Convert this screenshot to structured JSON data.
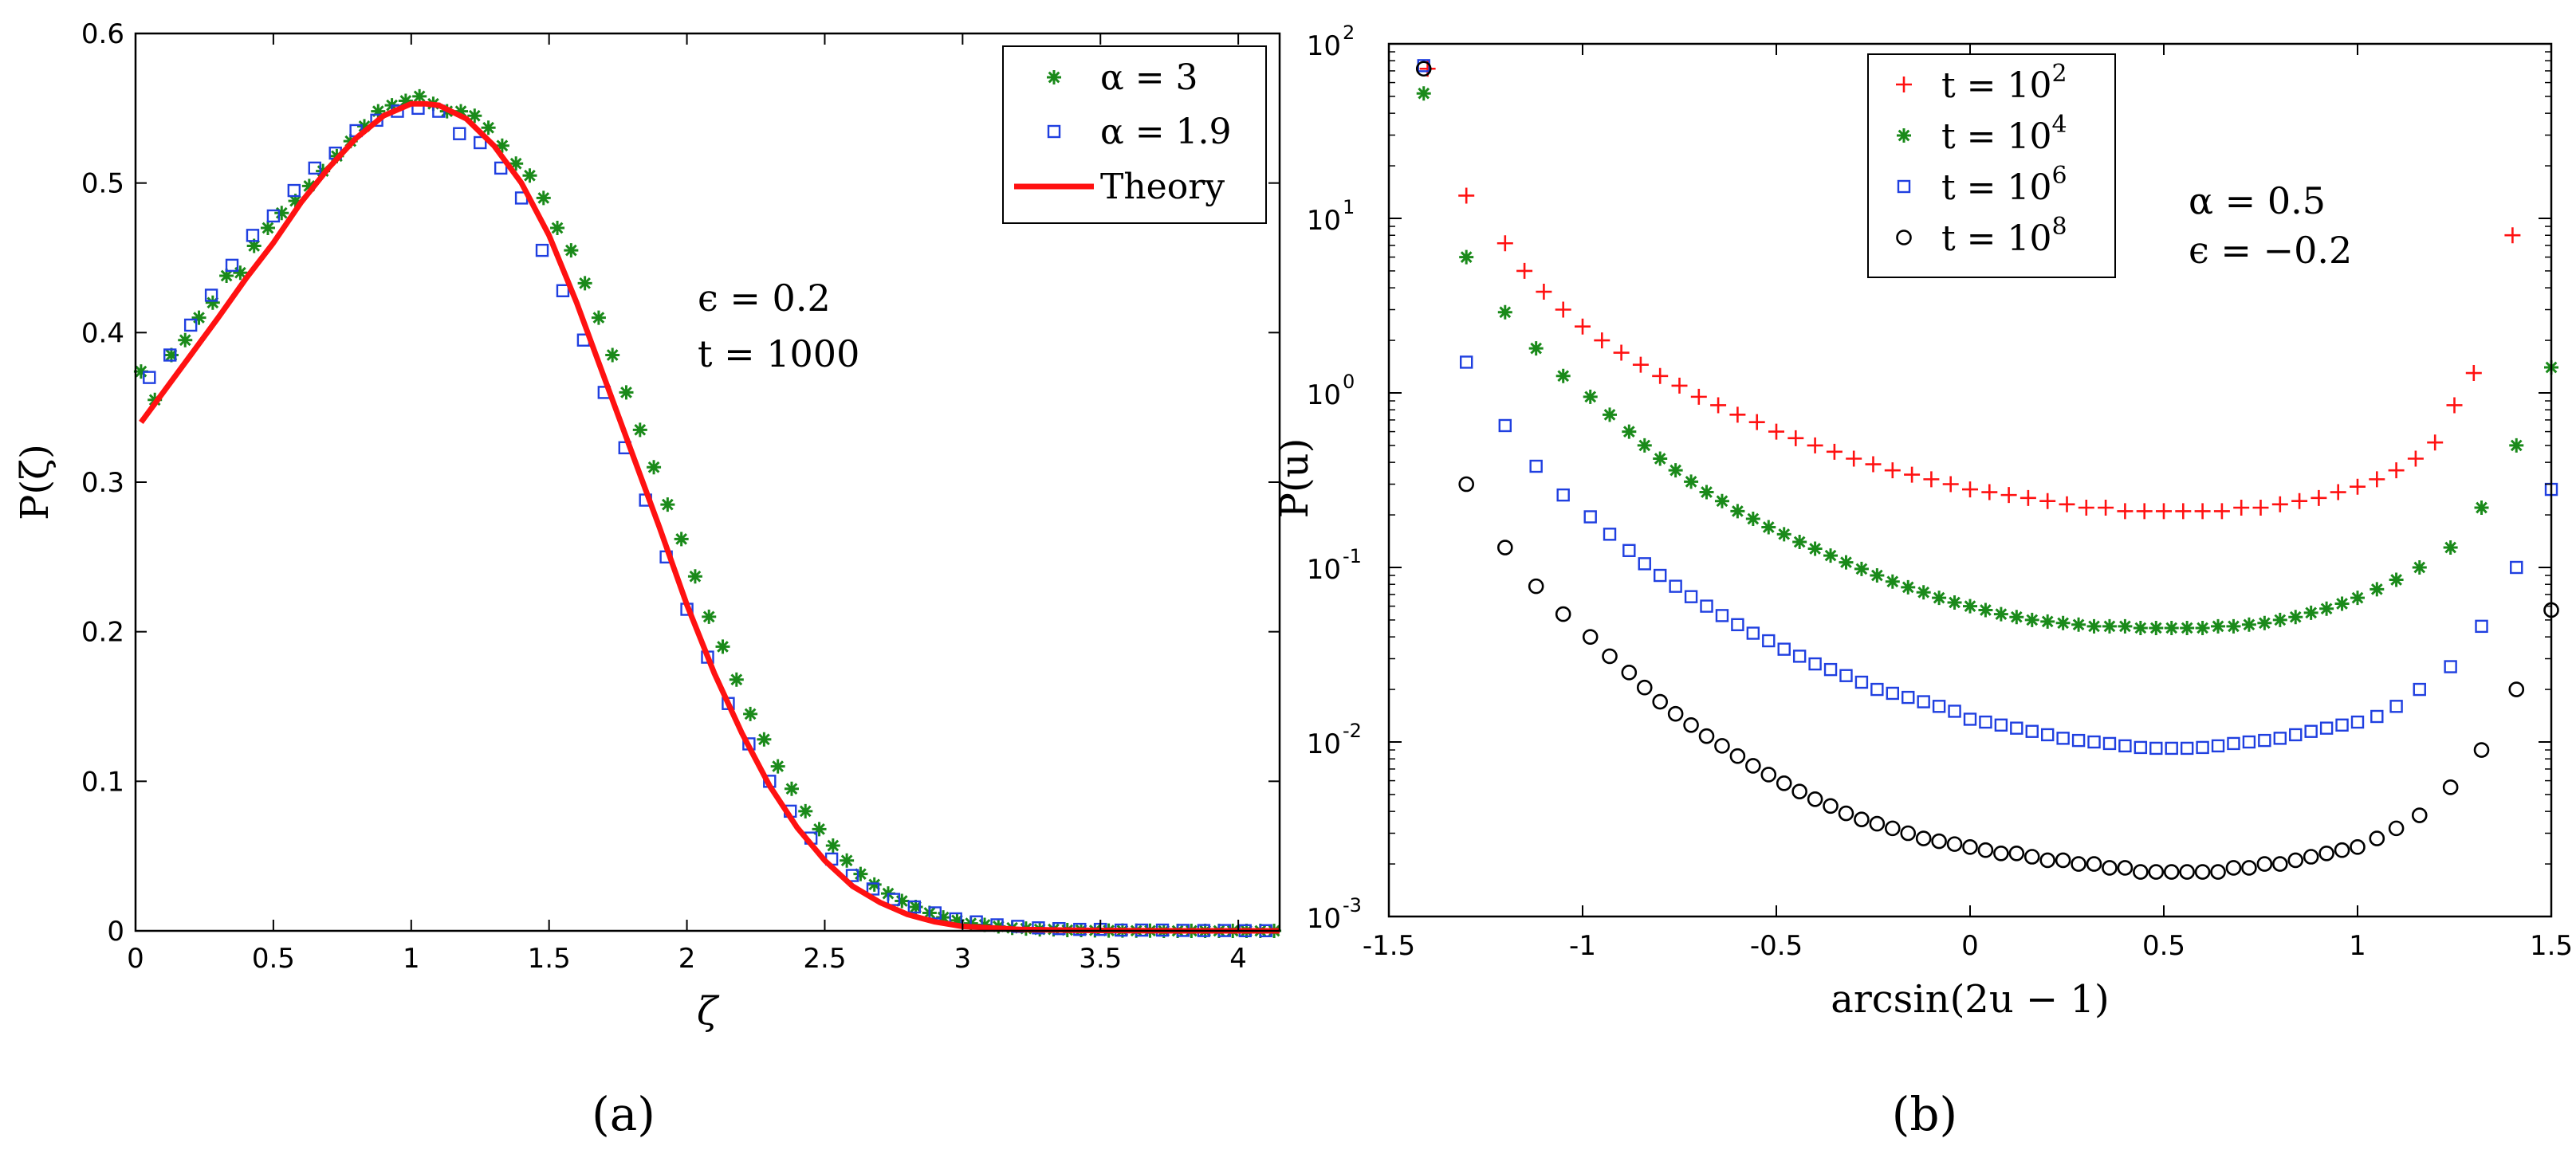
{
  "colors": {
    "green": "#1a8a1a",
    "blue": "#1f3fe0",
    "red": "#ff1111",
    "black": "#000000"
  },
  "chart_data": [
    {
      "type": "scatter",
      "panel_label": "(a)",
      "xlabel": "ζ",
      "ylabel": "P(ζ)",
      "xlim": [
        0,
        4.15
      ],
      "ylim": [
        0,
        0.6
      ],
      "xticks": [
        0,
        0.5,
        1,
        1.5,
        2,
        2.5,
        3,
        3.5,
        4
      ],
      "xtick_labels": [
        "0",
        "0.5",
        "1",
        "1.5",
        "2",
        "2.5",
        "3",
        "3.5",
        "4"
      ],
      "yticks": [
        0,
        0.1,
        0.2,
        0.3,
        0.4,
        0.5,
        0.6
      ],
      "ytick_labels": [
        "0",
        "0.1",
        "0.2",
        "0.3",
        "0.4",
        "0.5",
        "0.6"
      ],
      "annotations": [
        "ϵ = 0.2",
        "t = 1000"
      ],
      "legend_position": "top-right",
      "theory": {
        "name": "Theory",
        "x": [
          0.02,
          0.1,
          0.2,
          0.3,
          0.4,
          0.5,
          0.6,
          0.7,
          0.8,
          0.9,
          1.0,
          1.05,
          1.1,
          1.2,
          1.3,
          1.4,
          1.5,
          1.6,
          1.7,
          1.8,
          1.9,
          2.0,
          2.1,
          2.2,
          2.3,
          2.4,
          2.5,
          2.6,
          2.7,
          2.8,
          2.9,
          3.0,
          3.2,
          3.4,
          3.6,
          3.8,
          4.0,
          4.15
        ],
        "y": [
          0.34,
          0.36,
          0.385,
          0.41,
          0.436,
          0.46,
          0.487,
          0.51,
          0.53,
          0.545,
          0.553,
          0.553,
          0.552,
          0.543,
          0.525,
          0.5,
          0.465,
          0.42,
          0.37,
          0.32,
          0.27,
          0.218,
          0.172,
          0.132,
          0.097,
          0.069,
          0.047,
          0.03,
          0.019,
          0.011,
          0.006,
          0.003,
          0.001,
          0.0004,
          0.0001,
          0,
          0,
          0
        ]
      },
      "series": [
        {
          "name": "α = 3",
          "marker": "asterisk",
          "x": [
            0.02,
            0.07,
            0.13,
            0.18,
            0.23,
            0.28,
            0.33,
            0.38,
            0.43,
            0.48,
            0.53,
            0.58,
            0.63,
            0.68,
            0.73,
            0.78,
            0.83,
            0.88,
            0.93,
            0.98,
            1.03,
            1.08,
            1.13,
            1.18,
            1.23,
            1.28,
            1.33,
            1.38,
            1.43,
            1.48,
            1.53,
            1.58,
            1.63,
            1.68,
            1.73,
            1.78,
            1.83,
            1.88,
            1.93,
            1.98,
            2.03,
            2.08,
            2.13,
            2.18,
            2.23,
            2.28,
            2.33,
            2.38,
            2.43,
            2.48,
            2.53,
            2.58,
            2.63,
            2.68,
            2.73,
            2.78,
            2.83,
            2.88,
            2.93,
            2.98,
            3.03,
            3.08,
            3.13,
            3.18,
            3.23,
            3.28,
            3.33,
            3.38,
            3.43,
            3.48,
            3.53,
            3.58,
            3.63,
            3.68,
            3.73,
            3.78,
            3.83,
            3.88,
            3.93,
            3.98,
            4.03,
            4.08,
            4.13
          ],
          "y": [
            0.374,
            0.355,
            0.385,
            0.395,
            0.41,
            0.42,
            0.438,
            0.44,
            0.458,
            0.47,
            0.48,
            0.488,
            0.498,
            0.508,
            0.518,
            0.528,
            0.538,
            0.548,
            0.552,
            0.555,
            0.558,
            0.553,
            0.548,
            0.548,
            0.545,
            0.537,
            0.525,
            0.513,
            0.505,
            0.49,
            0.47,
            0.455,
            0.433,
            0.41,
            0.385,
            0.36,
            0.335,
            0.31,
            0.285,
            0.262,
            0.237,
            0.21,
            0.19,
            0.168,
            0.145,
            0.128,
            0.11,
            0.095,
            0.08,
            0.068,
            0.057,
            0.047,
            0.038,
            0.031,
            0.025,
            0.02,
            0.016,
            0.012,
            0.009,
            0.007,
            0.005,
            0.004,
            0.003,
            0.002,
            0.0015,
            0.001,
            0.001,
            0.0005,
            0.0005,
            0.0003,
            0.0002,
            0.0002,
            0.0001,
            0.0001,
            0,
            0,
            0,
            0,
            0,
            0,
            0,
            0,
            0
          ]
        },
        {
          "name": "α = 1.9",
          "marker": "square",
          "x": [
            0.05,
            0.125,
            0.2,
            0.275,
            0.35,
            0.425,
            0.5,
            0.575,
            0.65,
            0.725,
            0.8,
            0.875,
            0.95,
            1.025,
            1.1,
            1.175,
            1.25,
            1.325,
            1.4,
            1.475,
            1.55,
            1.625,
            1.7,
            1.775,
            1.85,
            1.925,
            2.0,
            2.075,
            2.15,
            2.225,
            2.3,
            2.375,
            2.45,
            2.525,
            2.6,
            2.675,
            2.75,
            2.825,
            2.9,
            2.975,
            3.05,
            3.125,
            3.2,
            3.275,
            3.35,
            3.425,
            3.5,
            3.575,
            3.65,
            3.725,
            3.8,
            3.875,
            3.95,
            4.025,
            4.1
          ],
          "y": [
            0.37,
            0.385,
            0.405,
            0.425,
            0.445,
            0.465,
            0.478,
            0.495,
            0.51,
            0.52,
            0.535,
            0.542,
            0.548,
            0.55,
            0.548,
            0.533,
            0.527,
            0.51,
            0.49,
            0.455,
            0.428,
            0.395,
            0.36,
            0.323,
            0.288,
            0.25,
            0.215,
            0.183,
            0.152,
            0.125,
            0.1,
            0.08,
            0.062,
            0.048,
            0.037,
            0.028,
            0.021,
            0.016,
            0.012,
            0.008,
            0.006,
            0.004,
            0.003,
            0.002,
            0.0015,
            0.001,
            0.001,
            0.0005,
            0.0005,
            0.0005,
            0.0003,
            0.0002,
            0.0002,
            0.0001,
            0.0001
          ]
        }
      ]
    },
    {
      "type": "scatter",
      "panel_label": "(b)",
      "xlabel": "arcsin(2u − 1)",
      "ylabel": "P(u)",
      "yscale": "log",
      "xlim": [
        -1.5,
        1.5
      ],
      "ylim": [
        0.001,
        100
      ],
      "xticks": [
        -1.5,
        -1,
        -0.5,
        0,
        0.5,
        1,
        1.5
      ],
      "xtick_labels": [
        "-1.5",
        "-1",
        "-0.5",
        "0",
        "0.5",
        "1",
        "1.5"
      ],
      "ytick_exponents": [
        -3,
        -2,
        -1,
        0,
        1,
        2
      ],
      "ytick_base": "10",
      "annotations": [
        "α = 0.5",
        "ϵ = −0.2"
      ],
      "legend_position": "top-left",
      "series": [
        {
          "name": "t = 10",
          "name_exponent": "2",
          "marker": "plus",
          "x": [
            -1.4,
            -1.3,
            -1.2,
            -1.15,
            -1.1,
            -1.05,
            -1.0,
            -0.95,
            -0.9,
            -0.85,
            -0.8,
            -0.75,
            -0.7,
            -0.65,
            -0.6,
            -0.55,
            -0.5,
            -0.45,
            -0.4,
            -0.35,
            -0.3,
            -0.25,
            -0.2,
            -0.15,
            -0.1,
            -0.05,
            0.0,
            0.05,
            0.1,
            0.15,
            0.2,
            0.25,
            0.3,
            0.35,
            0.4,
            0.45,
            0.5,
            0.55,
            0.6,
            0.65,
            0.7,
            0.75,
            0.8,
            0.85,
            0.9,
            0.95,
            1.0,
            1.05,
            1.1,
            1.15,
            1.2,
            1.25,
            1.3,
            1.4
          ],
          "y": [
            72,
            13.5,
            7.2,
            5.0,
            3.8,
            3.0,
            2.4,
            2.0,
            1.7,
            1.45,
            1.25,
            1.1,
            0.95,
            0.85,
            0.75,
            0.68,
            0.6,
            0.55,
            0.5,
            0.46,
            0.42,
            0.39,
            0.36,
            0.34,
            0.32,
            0.3,
            0.28,
            0.27,
            0.26,
            0.25,
            0.24,
            0.23,
            0.22,
            0.22,
            0.21,
            0.21,
            0.21,
            0.21,
            0.21,
            0.21,
            0.22,
            0.22,
            0.23,
            0.24,
            0.25,
            0.27,
            0.29,
            0.32,
            0.36,
            0.42,
            0.52,
            0.85,
            1.3,
            8.0
          ]
        },
        {
          "name": "t = 10",
          "name_exponent": "4",
          "marker": "asterisk",
          "x": [
            -1.41,
            -1.3,
            -1.2,
            -1.12,
            -1.05,
            -0.98,
            -0.93,
            -0.88,
            -0.84,
            -0.8,
            -0.76,
            -0.72,
            -0.68,
            -0.64,
            -0.6,
            -0.56,
            -0.52,
            -0.48,
            -0.44,
            -0.4,
            -0.36,
            -0.32,
            -0.28,
            -0.24,
            -0.2,
            -0.16,
            -0.12,
            -0.08,
            -0.04,
            0.0,
            0.04,
            0.08,
            0.12,
            0.16,
            0.2,
            0.24,
            0.28,
            0.32,
            0.36,
            0.4,
            0.44,
            0.48,
            0.52,
            0.56,
            0.6,
            0.64,
            0.68,
            0.72,
            0.76,
            0.8,
            0.84,
            0.88,
            0.92,
            0.96,
            1.0,
            1.05,
            1.1,
            1.16,
            1.24,
            1.32,
            1.41,
            1.5
          ],
          "y": [
            52,
            6.0,
            2.9,
            1.8,
            1.25,
            0.95,
            0.75,
            0.6,
            0.5,
            0.42,
            0.36,
            0.31,
            0.27,
            0.24,
            0.21,
            0.19,
            0.17,
            0.155,
            0.14,
            0.128,
            0.117,
            0.107,
            0.098,
            0.09,
            0.083,
            0.077,
            0.072,
            0.067,
            0.063,
            0.06,
            0.057,
            0.054,
            0.052,
            0.05,
            0.049,
            0.048,
            0.047,
            0.046,
            0.046,
            0.046,
            0.045,
            0.045,
            0.045,
            0.045,
            0.045,
            0.046,
            0.046,
            0.047,
            0.048,
            0.05,
            0.052,
            0.055,
            0.058,
            0.062,
            0.067,
            0.075,
            0.085,
            0.1,
            0.13,
            0.22,
            0.5,
            1.4
          ]
        },
        {
          "name": "t = 10",
          "name_exponent": "6",
          "marker": "square",
          "x": [
            -1.41,
            -1.3,
            -1.2,
            -1.12,
            -1.05,
            -0.98,
            -0.93,
            -0.88,
            -0.84,
            -0.8,
            -0.76,
            -0.72,
            -0.68,
            -0.64,
            -0.6,
            -0.56,
            -0.52,
            -0.48,
            -0.44,
            -0.4,
            -0.36,
            -0.32,
            -0.28,
            -0.24,
            -0.2,
            -0.16,
            -0.12,
            -0.08,
            -0.04,
            0.0,
            0.04,
            0.08,
            0.12,
            0.16,
            0.2,
            0.24,
            0.28,
            0.32,
            0.36,
            0.4,
            0.44,
            0.48,
            0.52,
            0.56,
            0.6,
            0.64,
            0.68,
            0.72,
            0.76,
            0.8,
            0.84,
            0.88,
            0.92,
            0.96,
            1.0,
            1.05,
            1.1,
            1.16,
            1.24,
            1.32,
            1.41,
            1.5
          ],
          "y": [
            75,
            1.5,
            0.65,
            0.38,
            0.26,
            0.195,
            0.155,
            0.125,
            0.105,
            0.09,
            0.078,
            0.068,
            0.06,
            0.053,
            0.047,
            0.042,
            0.038,
            0.034,
            0.031,
            0.028,
            0.026,
            0.024,
            0.022,
            0.02,
            0.019,
            0.018,
            0.017,
            0.016,
            0.015,
            0.0135,
            0.013,
            0.0125,
            0.012,
            0.0115,
            0.011,
            0.0105,
            0.0102,
            0.01,
            0.0098,
            0.0095,
            0.0093,
            0.0092,
            0.0092,
            0.0092,
            0.0093,
            0.0095,
            0.0098,
            0.01,
            0.0102,
            0.0105,
            0.011,
            0.0115,
            0.012,
            0.0125,
            0.013,
            0.014,
            0.016,
            0.02,
            0.027,
            0.046,
            0.1,
            0.28
          ]
        },
        {
          "name": "t = 10",
          "name_exponent": "8",
          "marker": "circle",
          "x": [
            -1.41,
            -1.3,
            -1.2,
            -1.12,
            -1.05,
            -0.98,
            -0.93,
            -0.88,
            -0.84,
            -0.8,
            -0.76,
            -0.72,
            -0.68,
            -0.64,
            -0.6,
            -0.56,
            -0.52,
            -0.48,
            -0.44,
            -0.4,
            -0.36,
            -0.32,
            -0.28,
            -0.24,
            -0.2,
            -0.16,
            -0.12,
            -0.08,
            -0.04,
            0.0,
            0.04,
            0.08,
            0.12,
            0.16,
            0.2,
            0.24,
            0.28,
            0.32,
            0.36,
            0.4,
            0.44,
            0.48,
            0.52,
            0.56,
            0.6,
            0.64,
            0.68,
            0.72,
            0.76,
            0.8,
            0.84,
            0.88,
            0.92,
            0.96,
            1.0,
            1.05,
            1.1,
            1.16,
            1.24,
            1.32,
            1.41,
            1.5
          ],
          "y": [
            72,
            0.3,
            0.13,
            0.078,
            0.054,
            0.04,
            0.031,
            0.025,
            0.0205,
            0.017,
            0.0145,
            0.0125,
            0.0108,
            0.0095,
            0.0083,
            0.0073,
            0.0065,
            0.0058,
            0.0052,
            0.0047,
            0.0043,
            0.0039,
            0.0036,
            0.0034,
            0.0032,
            0.003,
            0.0028,
            0.0027,
            0.0026,
            0.0025,
            0.0024,
            0.0023,
            0.0023,
            0.0022,
            0.0021,
            0.0021,
            0.002,
            0.002,
            0.0019,
            0.0019,
            0.0018,
            0.0018,
            0.0018,
            0.0018,
            0.0018,
            0.0018,
            0.0019,
            0.0019,
            0.002,
            0.002,
            0.0021,
            0.0022,
            0.0023,
            0.0024,
            0.0025,
            0.0028,
            0.0032,
            0.0038,
            0.0055,
            0.009,
            0.02,
            0.057
          ]
        }
      ]
    }
  ]
}
